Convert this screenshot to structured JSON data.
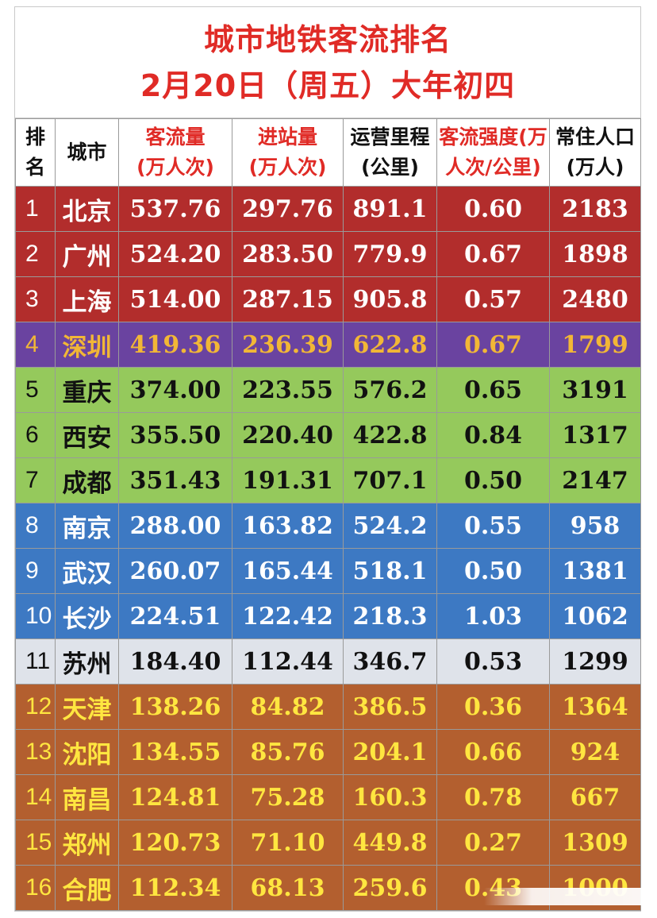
{
  "title": {
    "line1": "城市地铁客流排名",
    "line2": "2月20日（周五）大年初四"
  },
  "headers": [
    {
      "l1": "排",
      "l2": "名"
    },
    {
      "l1": "城市",
      "l2": ""
    },
    {
      "l1": "客流量",
      "l2": "(万人次)"
    },
    {
      "l1": "进站量",
      "l2": "(万人次)"
    },
    {
      "l1": "运营里程",
      "l2": "(公里)"
    },
    {
      "l1": "客流强度(万",
      "l2": "人次/公里)"
    },
    {
      "l1": "常住人口",
      "l2": "(万人)"
    }
  ],
  "rows": [
    {
      "rank": "1",
      "city": "北京",
      "ridership": "537.76",
      "entries": "297.76",
      "mileage": "891.1",
      "intensity": "0.60",
      "population": "2183",
      "group": "red"
    },
    {
      "rank": "2",
      "city": "广州",
      "ridership": "524.20",
      "entries": "283.50",
      "mileage": "779.9",
      "intensity": "0.67",
      "population": "1898",
      "group": "red"
    },
    {
      "rank": "3",
      "city": "上海",
      "ridership": "514.00",
      "entries": "287.15",
      "mileage": "905.8",
      "intensity": "0.57",
      "population": "2480",
      "group": "red"
    },
    {
      "rank": "4",
      "city": "深圳",
      "ridership": "419.36",
      "entries": "236.39",
      "mileage": "622.8",
      "intensity": "0.67",
      "population": "1799",
      "group": "purple"
    },
    {
      "rank": "5",
      "city": "重庆",
      "ridership": "374.00",
      "entries": "223.55",
      "mileage": "576.2",
      "intensity": "0.65",
      "population": "3191",
      "group": "green"
    },
    {
      "rank": "6",
      "city": "西安",
      "ridership": "355.50",
      "entries": "220.40",
      "mileage": "422.8",
      "intensity": "0.84",
      "population": "1317",
      "group": "green"
    },
    {
      "rank": "7",
      "city": "成都",
      "ridership": "351.43",
      "entries": "191.31",
      "mileage": "707.1",
      "intensity": "0.50",
      "population": "2147",
      "group": "green"
    },
    {
      "rank": "8",
      "city": "南京",
      "ridership": "288.00",
      "entries": "163.82",
      "mileage": "524.2",
      "intensity": "0.55",
      "population": "958",
      "group": "blue"
    },
    {
      "rank": "9",
      "city": "武汉",
      "ridership": "260.07",
      "entries": "165.44",
      "mileage": "518.1",
      "intensity": "0.50",
      "population": "1381",
      "group": "blue"
    },
    {
      "rank": "10",
      "city": "长沙",
      "ridership": "224.51",
      "entries": "122.42",
      "mileage": "218.3",
      "intensity": "1.03",
      "population": "1062",
      "group": "blue"
    },
    {
      "rank": "11",
      "city": "苏州",
      "ridership": "184.40",
      "entries": "112.44",
      "mileage": "346.7",
      "intensity": "0.53",
      "population": "1299",
      "group": "gray"
    },
    {
      "rank": "12",
      "city": "天津",
      "ridership": "138.26",
      "entries": "84.82",
      "mileage": "386.5",
      "intensity": "0.36",
      "population": "1364",
      "group": "brown"
    },
    {
      "rank": "13",
      "city": "沈阳",
      "ridership": "134.55",
      "entries": "85.76",
      "mileage": "204.1",
      "intensity": "0.66",
      "population": "924",
      "group": "brown"
    },
    {
      "rank": "14",
      "city": "南昌",
      "ridership": "124.81",
      "entries": "75.28",
      "mileage": "160.3",
      "intensity": "0.78",
      "population": "667",
      "group": "brown"
    },
    {
      "rank": "15",
      "city": "郑州",
      "ridership": "120.73",
      "entries": "71.10",
      "mileage": "449.8",
      "intensity": "0.27",
      "population": "1309",
      "group": "brown"
    },
    {
      "rank": "16",
      "city": "合肥",
      "ridership": "112.34",
      "entries": "68.13",
      "mileage": "259.6",
      "intensity": "0.43",
      "population": "1000",
      "group": "brown"
    }
  ],
  "colors": {
    "title": "#e02b26",
    "red": "#b22d2c",
    "purple": "#6a43a0",
    "green": "#95c95c",
    "blue": "#3d79c3",
    "gray": "#dfe3ea",
    "brown": "#b35f2f"
  }
}
